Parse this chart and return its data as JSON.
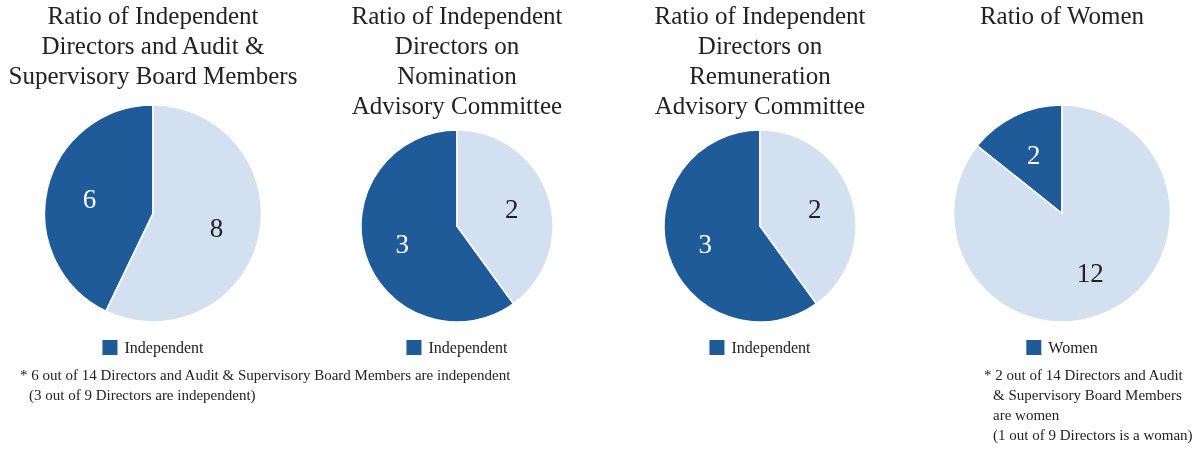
{
  "chart_data": [
    {
      "type": "pie",
      "title": "Ratio of Independent Directors and Audit & Supervisory Board Members",
      "categories": [
        "Independent",
        null
      ],
      "values": [
        6,
        8
      ],
      "colors": [
        "#1f5a99",
        "#d3e0ef"
      ],
      "data_labels": true,
      "legend": "bottom",
      "annotations": [
        "* 6 out of 14 Directors and Audit & Supervisory Board Members are independent",
        "(3 out of 9 Directors are independent)"
      ]
    },
    {
      "type": "pie",
      "title": "Ratio of Independent Directors on Nomination Advisory Committee",
      "categories": [
        "Independent",
        null
      ],
      "values": [
        3,
        2
      ],
      "colors": [
        "#1f5a99",
        "#d3e0ef"
      ],
      "data_labels": true,
      "legend": "bottom"
    },
    {
      "type": "pie",
      "title": "Ratio of Independent Directors on Remuneration Advisory Committee",
      "categories": [
        "Independent",
        null
      ],
      "values": [
        3,
        2
      ],
      "colors": [
        "#1f5a99",
        "#d3e0ef"
      ],
      "data_labels": true,
      "legend": "bottom"
    },
    {
      "type": "pie",
      "title": "Ratio of Women",
      "categories": [
        "Women",
        null
      ],
      "values": [
        2,
        12
      ],
      "colors": [
        "#1f5a99",
        "#d3e0ef"
      ],
      "data_labels": true,
      "legend": "bottom",
      "annotations": [
        "* 2 out of 14 Directors and Audit & Supervisory Board Members are women",
        "(1 out of 9 Directors is a woman)"
      ]
    }
  ]
}
